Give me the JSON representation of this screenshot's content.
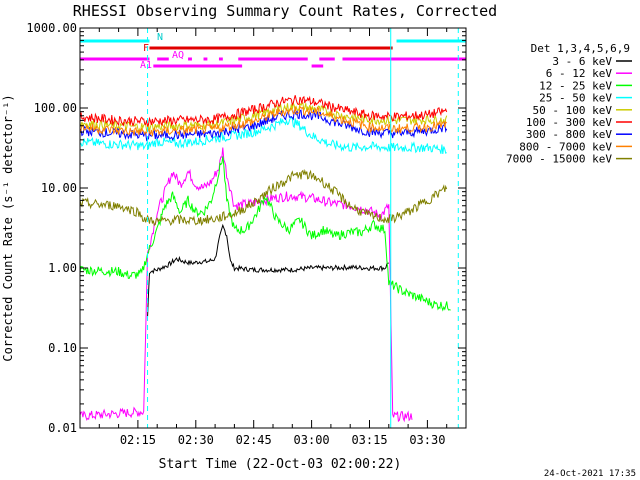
{
  "chart_data": {
    "type": "line",
    "title": "RHESSI Observing Summary Count Rates, Corrected",
    "xlabel": "Start Time (22-Oct-03 02:00:22)",
    "ylabel": "Corrected Count Rate (s⁻¹ detector⁻¹)",
    "yscale": "log",
    "ylim": [
      0.01,
      1000
    ],
    "xlim_minutes": [
      0,
      100
    ],
    "yticks": [
      {
        "value": 1000,
        "label": "1000.00"
      },
      {
        "value": 100,
        "label": "100.00"
      },
      {
        "value": 10,
        "label": "10.00"
      },
      {
        "value": 1,
        "label": "1.00"
      },
      {
        "value": 0.1,
        "label": "0.10"
      },
      {
        "value": 0.01,
        "label": "0.01"
      }
    ],
    "xticks": [
      {
        "value": 15,
        "label": "02:15"
      },
      {
        "value": 30,
        "label": "02:30"
      },
      {
        "value": 45,
        "label": "02:45"
      },
      {
        "value": 60,
        "label": "03:00"
      },
      {
        "value": 75,
        "label": "03:15"
      },
      {
        "value": 90,
        "label": "03:30"
      }
    ],
    "legend": {
      "title": "Det 1,3,4,5,6,9",
      "placement": "right"
    },
    "series": [
      {
        "name": "3 - 6 keV",
        "color": "#000000",
        "points": [
          [
            17.5,
            0.25
          ],
          [
            18,
            0.9
          ],
          [
            20,
            0.95
          ],
          [
            23,
            1.1
          ],
          [
            25,
            1.3
          ],
          [
            27,
            1.2
          ],
          [
            29,
            1.15
          ],
          [
            31,
            1.2
          ],
          [
            33,
            1.2
          ],
          [
            35,
            1.3
          ],
          [
            36,
            2.2
          ],
          [
            37,
            3.3
          ],
          [
            38,
            2.6
          ],
          [
            39,
            1.2
          ],
          [
            40,
            1.0
          ],
          [
            45,
            0.95
          ],
          [
            50,
            0.95
          ],
          [
            55,
            0.95
          ],
          [
            60,
            1.0
          ],
          [
            65,
            1.0
          ],
          [
            70,
            1.02
          ],
          [
            75,
            1.0
          ],
          [
            79,
            1.0
          ],
          [
            80,
            1.2
          ]
        ]
      },
      {
        "name": "6 - 12 keV",
        "color": "#ff00ff",
        "points": [
          [
            0,
            0.014
          ],
          [
            16.5,
            0.016
          ],
          [
            17.5,
            1.5
          ],
          [
            20,
            5
          ],
          [
            22,
            9
          ],
          [
            24,
            16
          ],
          [
            26,
            11
          ],
          [
            28,
            16
          ],
          [
            30,
            11
          ],
          [
            32,
            10
          ],
          [
            34,
            12
          ],
          [
            36,
            18
          ],
          [
            37,
            30
          ],
          [
            38,
            15
          ],
          [
            40,
            6
          ],
          [
            45,
            6.5
          ],
          [
            50,
            7.5
          ],
          [
            55,
            8
          ],
          [
            60,
            7.5
          ],
          [
            65,
            6.5
          ],
          [
            70,
            6
          ],
          [
            75,
            5.2
          ],
          [
            78,
            4.5
          ],
          [
            80,
            6
          ],
          [
            81,
            0.014
          ],
          [
            86,
            0.014
          ]
        ]
      },
      {
        "name": "12 - 25 keV",
        "color": "#00ff00",
        "points": [
          [
            0,
            0.95
          ],
          [
            10,
            0.9
          ],
          [
            13,
            0.8
          ],
          [
            16,
            0.85
          ],
          [
            17.5,
            1.5
          ],
          [
            20,
            3
          ],
          [
            22,
            6
          ],
          [
            24,
            8
          ],
          [
            26,
            5
          ],
          [
            28,
            7
          ],
          [
            30,
            5
          ],
          [
            32,
            5
          ],
          [
            34,
            7
          ],
          [
            36,
            16
          ],
          [
            37,
            25
          ],
          [
            38,
            7
          ],
          [
            40,
            3
          ],
          [
            43,
            3
          ],
          [
            46,
            5
          ],
          [
            48,
            8
          ],
          [
            51,
            4
          ],
          [
            54,
            3
          ],
          [
            57,
            4
          ],
          [
            60,
            2.5
          ],
          [
            63,
            3
          ],
          [
            66,
            2.5
          ],
          [
            70,
            2.8
          ],
          [
            73,
            2.8
          ],
          [
            76,
            3.5
          ],
          [
            79,
            3
          ],
          [
            80,
            0.65
          ],
          [
            84,
            0.5
          ],
          [
            88,
            0.42
          ],
          [
            92,
            0.35
          ],
          [
            96,
            0.33
          ]
        ]
      },
      {
        "name": "25 - 50 keV",
        "color": "#00ffff",
        "points": [
          [
            0,
            38
          ],
          [
            5,
            36
          ],
          [
            10,
            35
          ],
          [
            15,
            34
          ],
          [
            17,
            33
          ],
          [
            20,
            38
          ],
          [
            25,
            36
          ],
          [
            30,
            38
          ],
          [
            35,
            42
          ],
          [
            40,
            45
          ],
          [
            45,
            50
          ],
          [
            50,
            60
          ],
          [
            54,
            72
          ],
          [
            57,
            60
          ],
          [
            60,
            45
          ],
          [
            65,
            35
          ],
          [
            70,
            32
          ],
          [
            75,
            33
          ],
          [
            80,
            32
          ],
          [
            85,
            32
          ],
          [
            90,
            32
          ],
          [
            95,
            30
          ]
        ]
      },
      {
        "name": "50 - 100 keV",
        "color": "#cccc00",
        "points": [
          [
            0,
            65
          ],
          [
            10,
            60
          ],
          [
            17,
            58
          ],
          [
            25,
            60
          ],
          [
            35,
            62
          ],
          [
            45,
            80
          ],
          [
            52,
            100
          ],
          [
            57,
            105
          ],
          [
            62,
            95
          ],
          [
            68,
            80
          ],
          [
            75,
            72
          ],
          [
            82,
            70
          ],
          [
            90,
            72
          ],
          [
            95,
            70
          ]
        ]
      },
      {
        "name": "100 - 300 keV",
        "color": "#ff0000",
        "points": [
          [
            0,
            78
          ],
          [
            10,
            70
          ],
          [
            17,
            68
          ],
          [
            25,
            70
          ],
          [
            35,
            72
          ],
          [
            45,
            95
          ],
          [
            52,
            120
          ],
          [
            57,
            128
          ],
          [
            62,
            115
          ],
          [
            68,
            95
          ],
          [
            75,
            80
          ],
          [
            82,
            78
          ],
          [
            90,
            82
          ],
          [
            95,
            92
          ]
        ]
      },
      {
        "name": "300 - 800 keV",
        "color": "#0000ff",
        "points": [
          [
            0,
            52
          ],
          [
            10,
            48
          ],
          [
            17,
            45
          ],
          [
            25,
            46
          ],
          [
            35,
            48
          ],
          [
            45,
            60
          ],
          [
            52,
            80
          ],
          [
            57,
            85
          ],
          [
            62,
            78
          ],
          [
            68,
            62
          ],
          [
            75,
            50
          ],
          [
            82,
            48
          ],
          [
            90,
            52
          ],
          [
            95,
            58
          ]
        ]
      },
      {
        "name": "800 - 7000 keV",
        "color": "#ff8000",
        "points": [
          [
            0,
            58
          ],
          [
            10,
            52
          ],
          [
            17,
            50
          ],
          [
            25,
            52
          ],
          [
            35,
            55
          ],
          [
            45,
            68
          ],
          [
            52,
            90
          ],
          [
            57,
            95
          ],
          [
            62,
            88
          ],
          [
            68,
            72
          ],
          [
            75,
            58
          ],
          [
            82,
            55
          ],
          [
            90,
            58
          ],
          [
            95,
            62
          ]
        ]
      },
      {
        "name": "7000 - 15000 keV",
        "color": "#808000",
        "points": [
          [
            0,
            6.5
          ],
          [
            5,
            6.2
          ],
          [
            10,
            6
          ],
          [
            15,
            5
          ],
          [
            17,
            4
          ],
          [
            20,
            3.8
          ],
          [
            25,
            4
          ],
          [
            30,
            3.9
          ],
          [
            35,
            4.1
          ],
          [
            40,
            4.8
          ],
          [
            45,
            6.5
          ],
          [
            50,
            10
          ],
          [
            55,
            14
          ],
          [
            58,
            15
          ],
          [
            62,
            13
          ],
          [
            66,
            9
          ],
          [
            70,
            6
          ],
          [
            75,
            4.5
          ],
          [
            80,
            4
          ],
          [
            85,
            5
          ],
          [
            90,
            7
          ],
          [
            95,
            10
          ]
        ]
      }
    ],
    "flag_bars": [
      {
        "name": "N",
        "color": "#00ffff",
        "ranges": [
          [
            0,
            18
          ],
          [
            82,
            100
          ]
        ]
      },
      {
        "name": "F",
        "color": "#e00000",
        "ranges": [
          [
            18,
            81
          ]
        ]
      },
      {
        "name": "AQ",
        "color": "#ff00ff",
        "ranges": [
          [
            0,
            18
          ],
          [
            20,
            23
          ],
          [
            28,
            29
          ],
          [
            32,
            33
          ],
          [
            36,
            37
          ],
          [
            41,
            59
          ],
          [
            62,
            66
          ],
          [
            68,
            100
          ]
        ]
      },
      {
        "name": "A1",
        "color": "#ff00ff",
        "ranges": [
          [
            19,
            42
          ],
          [
            60,
            63
          ]
        ]
      }
    ],
    "flag_labels": {
      "n": "N",
      "f": "F",
      "aq": "AQ",
      "a1": "A1"
    },
    "vertical_markers": [
      {
        "x": 0,
        "style": "dashed",
        "color": "#00ffff"
      },
      {
        "x": 17.5,
        "style": "dashed",
        "color": "#00ffff"
      },
      {
        "x": 80.5,
        "style": "solid",
        "color": "#00ffff"
      },
      {
        "x": 98,
        "style": "dashed",
        "color": "#00ffff"
      }
    ]
  },
  "footer": {
    "timestamp": "24-Oct-2021 17:35"
  }
}
